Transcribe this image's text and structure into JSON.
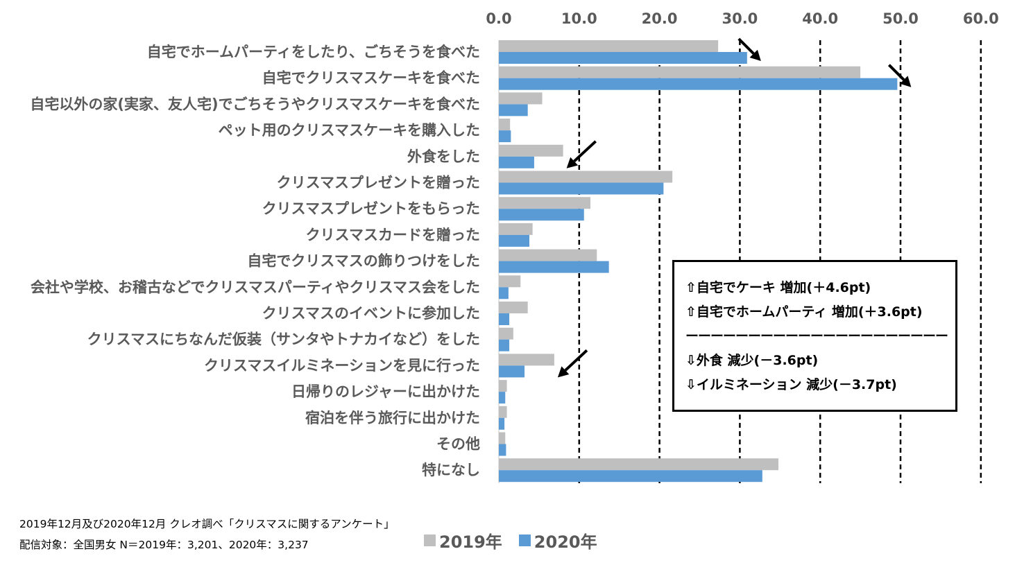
{
  "chart_data": {
    "type": "bar",
    "orientation": "horizontal",
    "categories": [
      "自宅でホームパーティをしたり、ごちそうを食べた",
      "自宅でクリスマスケーキを食べた",
      "自宅以外の家(実家、友人宅)でごちそうやクリスマスケーキを食べた",
      "ペット用のクリスマスケーキを購入した",
      "外食をした",
      "クリスマスプレゼントを贈った",
      "クリスマスプレゼントをもらった",
      "クリスマスカードを贈った",
      "自宅でクリスマスの飾りつけをした",
      "会社や学校、お稽古などでクリスマスパーティやクリスマス会をした",
      "クリスマスのイベントに参加した",
      "クリスマスにちなんだ仮装（サンタやトナカイなど）をした",
      "クリスマスイルミネーションを見に行った",
      "日帰りのレジャーに出かけた",
      "宿泊を伴う旅行に出かけた",
      "その他",
      "特になし"
    ],
    "series": [
      {
        "name": "2019年",
        "color": "#bfbfbf",
        "values": [
          27.3,
          45.0,
          5.4,
          1.4,
          8.0,
          21.6,
          11.4,
          4.2,
          12.2,
          2.7,
          3.6,
          1.8,
          6.9,
          1.0,
          1.0,
          0.8,
          34.8
        ]
      },
      {
        "name": "2020年",
        "color": "#5b9bd5",
        "values": [
          30.9,
          49.6,
          3.6,
          1.5,
          4.4,
          20.5,
          10.6,
          3.8,
          13.7,
          1.2,
          1.3,
          1.3,
          3.2,
          0.8,
          0.7,
          0.9,
          32.8
        ]
      }
    ],
    "xlim": [
      0,
      60
    ],
    "ticks": [
      "0.0",
      "10.0",
      "20.0",
      "30.0",
      "40.0",
      "50.0",
      "60.0"
    ],
    "tick_values": [
      0,
      10,
      20,
      30,
      40,
      50,
      60
    ],
    "grid": true,
    "axis_position": "top",
    "legend_position": "bottom-center",
    "arrows": [
      {
        "category_index": 0,
        "direction": "down-right"
      },
      {
        "category_index": 1,
        "direction": "down-right"
      },
      {
        "category_index": 4,
        "direction": "down-left"
      },
      {
        "category_index": 12,
        "direction": "down-left"
      }
    ]
  },
  "annotation": {
    "lines": [
      "⇧自宅でケーキ 増加(＋4.6pt)",
      "⇧自宅でホームパーティ 増加(＋3.6pt)",
      "ーーーーーーーーーーーーーーーーーーーーー",
      "⇩外食 減少(－3.6pt)",
      "⇩イルミネーション 減少(－3.7pt)"
    ]
  },
  "source": {
    "line1": "2019年12月及び2020年12月 クレオ調べ「クリスマスに関するアンケート」",
    "line2": "配信対象：全国男女 N＝2019年：3,201、2020年：3,237"
  },
  "legend": {
    "items": [
      {
        "label": "2019年",
        "color": "#bfbfbf"
      },
      {
        "label": "2020年",
        "color": "#5b9bd5"
      }
    ]
  }
}
